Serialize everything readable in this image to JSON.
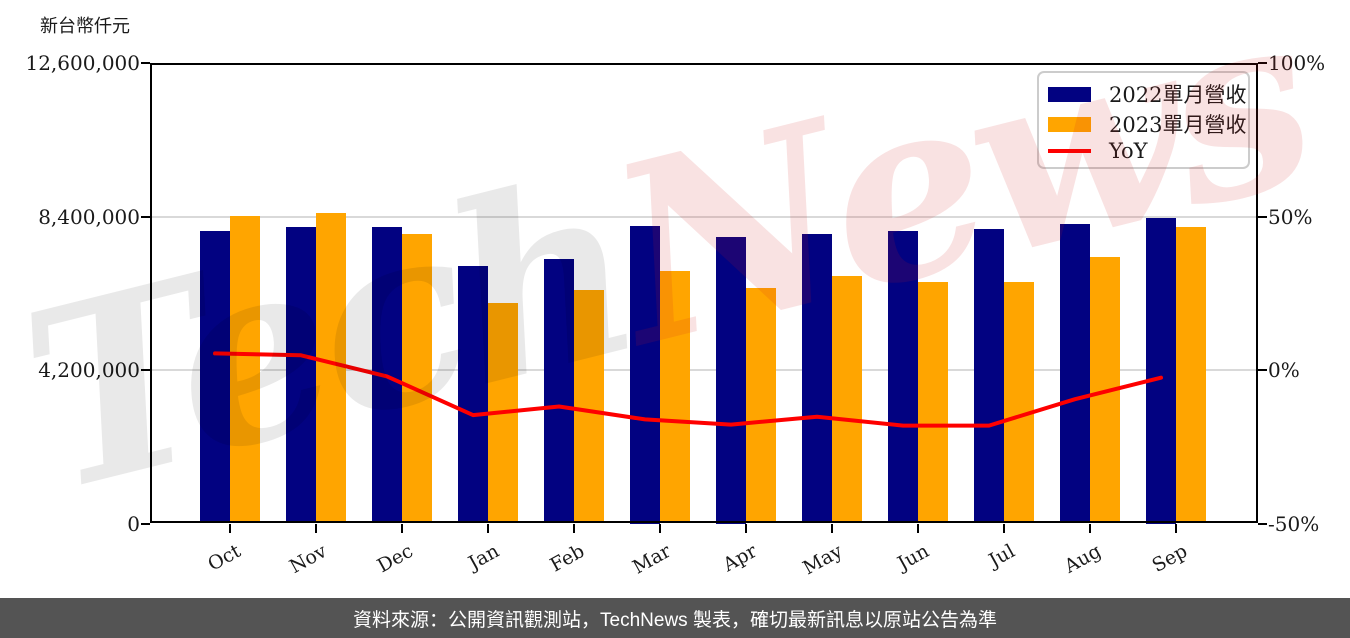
{
  "chart_data": {
    "type": "bar",
    "subtype": "grouped bars with YoY line overlay (dual axis)",
    "categories": [
      "Oct",
      "Nov",
      "Dec",
      "Jan",
      "Feb",
      "Mar",
      "Apr",
      "May",
      "Jun",
      "Jul",
      "Aug",
      "Sep"
    ],
    "series": [
      {
        "name": "2022單月營收",
        "type": "bar",
        "axis": "left",
        "color": "#020281",
        "values": [
          8010000,
          8120000,
          8110000,
          7050000,
          7240000,
          8140000,
          7840000,
          7930000,
          8010000,
          8050000,
          8190000,
          8360000
        ]
      },
      {
        "name": "2023單月營收",
        "type": "bar",
        "axis": "left",
        "color": "#ffa500",
        "values": [
          8420000,
          8490000,
          7930000,
          6040000,
          6380000,
          6920000,
          6450000,
          6760000,
          6600000,
          6610000,
          7280000,
          8110000
        ]
      },
      {
        "name": "YoY",
        "type": "line",
        "axis": "right",
        "color": "#fe0000",
        "values": [
          5.4,
          4.8,
          -2.1,
          -14.7,
          -11.9,
          -16.1,
          -17.8,
          -15.2,
          -18.1,
          -18.1,
          -9.5,
          -2.5
        ]
      }
    ],
    "left_axis": {
      "title": "新台幣仟元",
      "unit": "NT$ thousand",
      "tick_labels": [
        "12,600,000",
        "8,400,000",
        "4,200,000",
        "0"
      ],
      "tick_values": [
        12600000,
        8400000,
        4200000,
        0
      ],
      "min": 0,
      "max": 12600000
    },
    "right_axis": {
      "unit": "%",
      "tick_labels": [
        "100%",
        "50%",
        "0%",
        "-50%"
      ],
      "tick_values": [
        100,
        50,
        0,
        -50
      ],
      "min": -50,
      "max": 100
    },
    "grid": "horizontal gridlines at left-axis ticks",
    "legend_position": "top-right"
  },
  "watermark": {
    "part1": "Tech",
    "part2": "News"
  },
  "footer": {
    "text": "資料來源：公開資訊觀測站，TechNews 製表，確切最新訊息以原站公告為準",
    "background": "#545454"
  },
  "colors": {
    "bar_2022": "#020281",
    "bar_2023": "#ffa500",
    "yoy_line": "#fe0000",
    "grid": "#d9d9d9",
    "axis": "#000000",
    "footer_bg": "#545454"
  }
}
